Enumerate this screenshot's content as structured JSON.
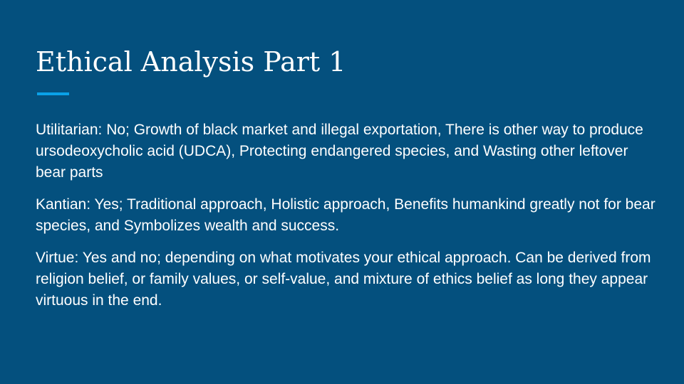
{
  "slide": {
    "title": "Ethical Analysis Part 1",
    "colors": {
      "background": "#04507e",
      "accent": "#0aa1e8",
      "text": "#ffffff"
    },
    "paragraphs": [
      "Utilitarian: No; Growth of black market and illegal exportation, There is other way to produce ursodeoxycholic acid (UDCA), Protecting endangered species, and Wasting other leftover bear parts",
      "Kantian: Yes; Traditional approach, Holistic approach, Benefits humankind greatly not for bear species, and Symbolizes wealth and success.",
      "Virtue: Yes and no; depending on what motivates your ethical approach. Can be derived from religion belief, or family values, or self-value, and mixture of ethics belief as long they appear virtuous in the end."
    ]
  }
}
